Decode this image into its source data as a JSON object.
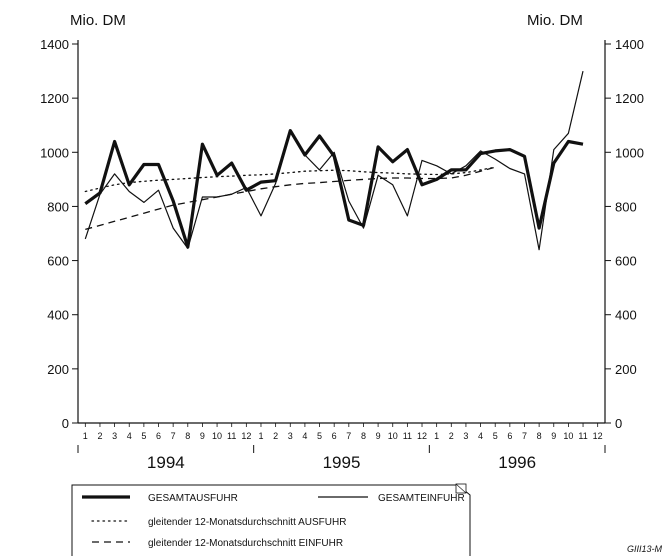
{
  "chart_data": {
    "type": "line",
    "unit_left": "Mio. DM",
    "unit_right": "Mio. DM",
    "ylim": [
      0,
      1400
    ],
    "y_ticks": [
      0,
      200,
      400,
      600,
      800,
      1000,
      1200,
      1400
    ],
    "x_month_labels": [
      "1",
      "2",
      "3",
      "4",
      "5",
      "6",
      "7",
      "8",
      "9",
      "10",
      "11",
      "12",
      "1",
      "2",
      "3",
      "4",
      "5",
      "6",
      "7",
      "8",
      "9",
      "10",
      "11",
      "12",
      "1",
      "2",
      "3",
      "4",
      "5",
      "6",
      "7",
      "8",
      "9",
      "10",
      "11",
      "12"
    ],
    "years": [
      "1994",
      "1995",
      "1996"
    ],
    "series": [
      {
        "name": "GESAMTAUSFUHR",
        "style": "thick",
        "values": [
          810,
          850,
          1040,
          880,
          955,
          955,
          820,
          650,
          1030,
          915,
          960,
          860,
          890,
          895,
          1080,
          990,
          1060,
          985,
          750,
          730,
          1020,
          965,
          1010,
          880,
          900,
          935,
          935,
          995,
          1005,
          1010,
          985,
          720,
          960,
          1040,
          1030,
          null
        ]
      },
      {
        "name": "GESAMTEINFUHR",
        "style": "thin",
        "values": [
          680,
          845,
          920,
          855,
          815,
          860,
          720,
          645,
          835,
          835,
          845,
          870,
          765,
          885,
          1075,
          990,
          935,
          1000,
          820,
          720,
          915,
          880,
          765,
          970,
          950,
          920,
          950,
          1005,
          975,
          940,
          920,
          640,
          1010,
          1070,
          1300,
          null
        ]
      },
      {
        "name": "gleitender 12-Monatsdurchschnitt AUSFUHR",
        "style": "dotted",
        "values": [
          855,
          868,
          880,
          888,
          893,
          897,
          900,
          903,
          907,
          910,
          912,
          915,
          917,
          920,
          925,
          930,
          932,
          934,
          932,
          928,
          925,
          923,
          920,
          919,
          918,
          920,
          925,
          935,
          945,
          null,
          null,
          null,
          null,
          null,
          null,
          null
        ]
      },
      {
        "name": "gleitender 12-Monatsdurchschnitt EINFUHR",
        "style": "dashed",
        "values": [
          715,
          730,
          745,
          760,
          775,
          790,
          805,
          815,
          825,
          835,
          845,
          855,
          865,
          873,
          880,
          885,
          888,
          892,
          896,
          900,
          903,
          905,
          905,
          903,
          903,
          905,
          915,
          930,
          945,
          null,
          null,
          null,
          null,
          null,
          null,
          null
        ]
      }
    ]
  },
  "legend": {
    "items": [
      {
        "label": "GESAMTAUSFUHR",
        "style": "thick"
      },
      {
        "label": "GESAMTEINFUHR",
        "style": "thin"
      },
      {
        "label": "gleitender 12-Monatsdurchschnitt AUSFUHR",
        "style": "dotted"
      },
      {
        "label": "gleitender 12-Monatsdurchschnitt EINFUHR",
        "style": "dashed"
      }
    ]
  },
  "figure_code": "GIII13-M"
}
